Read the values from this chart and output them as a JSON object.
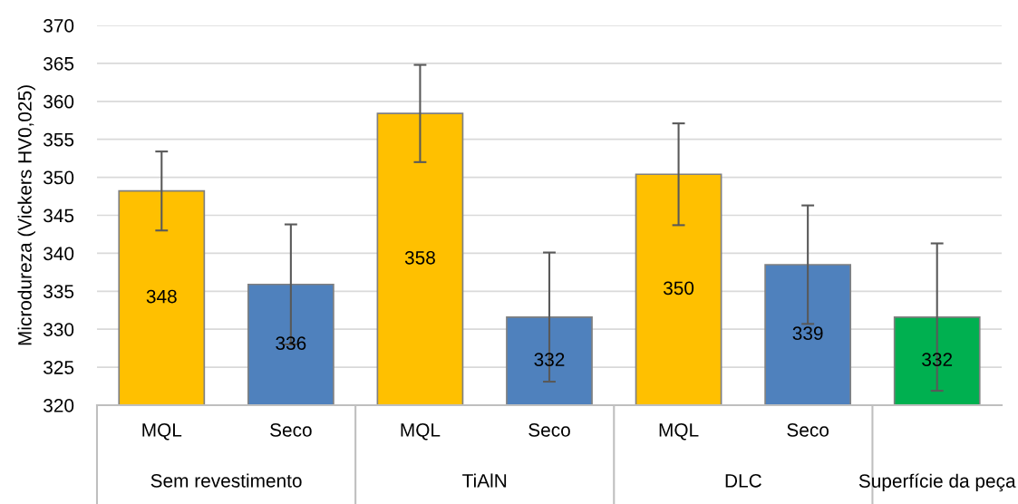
{
  "chart_data": {
    "type": "bar",
    "ylabel": "Microdureza (Vickers HV0,025)",
    "categories": [
      "MQL",
      "Seco",
      "MQL",
      "Seco",
      "MQL",
      "Seco",
      null
    ],
    "values": [
      348.2,
      335.9,
      358.4,
      331.6,
      350.4,
      338.5,
      331.6
    ],
    "errors": [
      5.2,
      7.9,
      6.4,
      8.5,
      6.7,
      7.8,
      9.7
    ],
    "colors": [
      "#ffc000",
      "#4f81bd",
      "#ffc000",
      "#4f81bd",
      "#ffc000",
      "#4f81bd",
      "#00b050"
    ],
    "value_labels": [
      "348",
      "336",
      "358",
      "332",
      "350",
      "339",
      "332"
    ],
    "annotations": [
      "Sem revestimento",
      "TiAlN",
      "DLC",
      "Superfície da peça"
    ],
    "ylim": [
      320,
      370
    ],
    "yticks": [
      320,
      325,
      330,
      335,
      340,
      345,
      350,
      355,
      360,
      365,
      370
    ],
    "grid": "y"
  }
}
